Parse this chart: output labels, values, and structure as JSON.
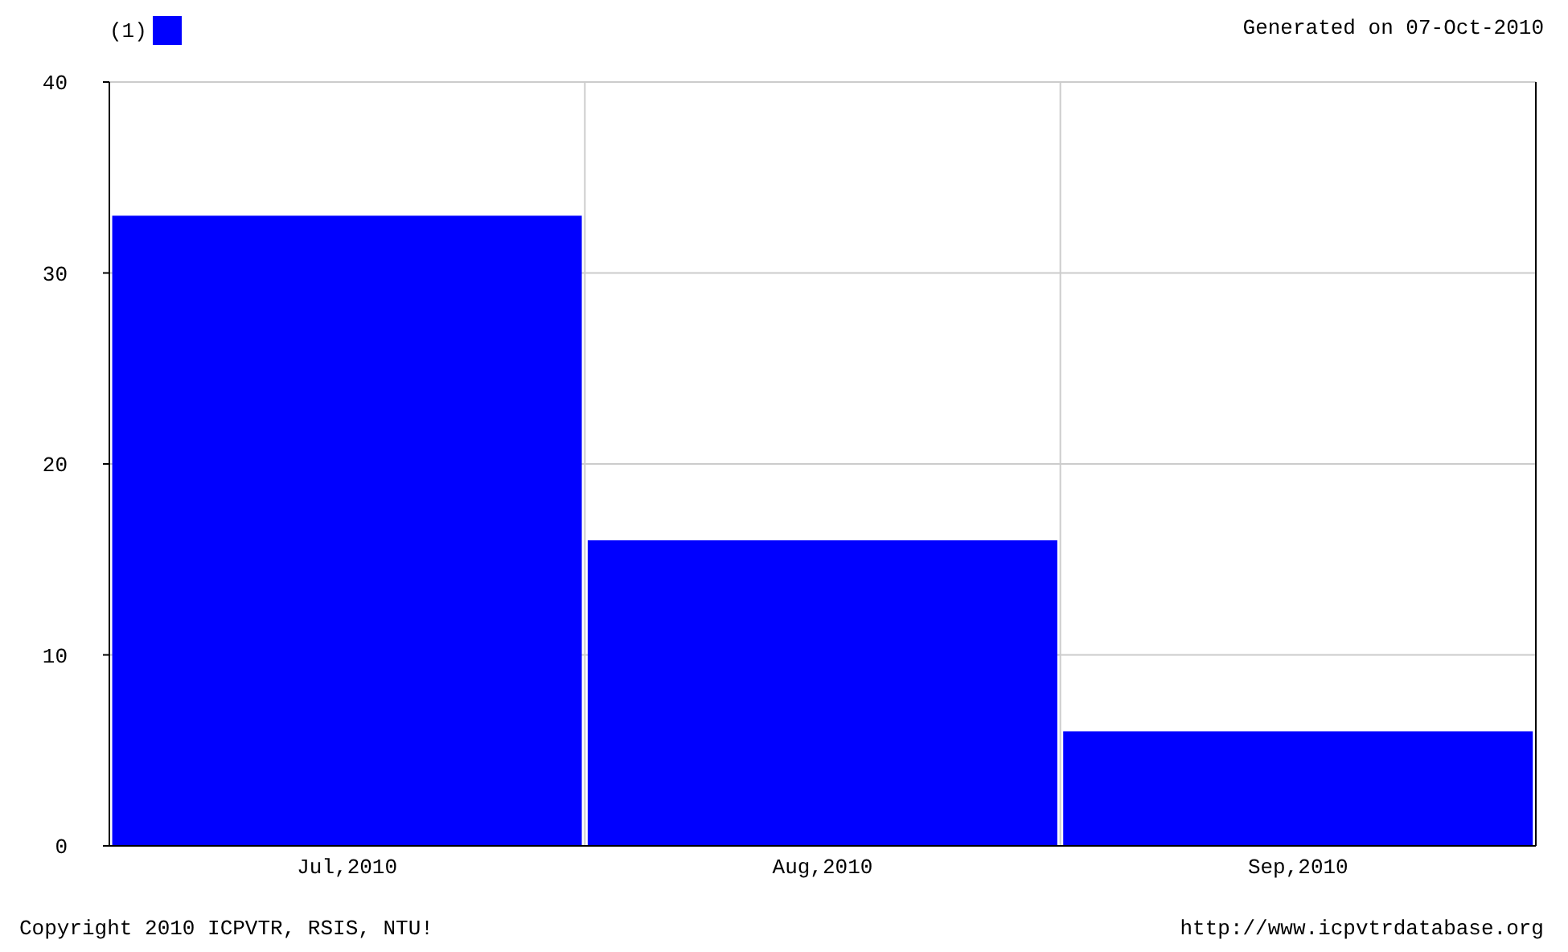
{
  "chart_data": {
    "type": "bar",
    "categories": [
      "Jul,2010",
      "Aug,2010",
      "Sep,2010"
    ],
    "series": [
      {
        "name": "(1)",
        "color": "#0000ff",
        "values": [
          33,
          16,
          6
        ]
      }
    ],
    "ylim": [
      0,
      40
    ],
    "yticks": [
      0,
      10,
      20,
      30,
      40
    ],
    "grid": true,
    "legend": "top left",
    "annotations": [
      "Generated on 07-Oct-2010",
      "Copyright 2010 ICPVTR, RSIS, NTU!",
      "http://www.icpvtrdatabase.org"
    ]
  }
}
